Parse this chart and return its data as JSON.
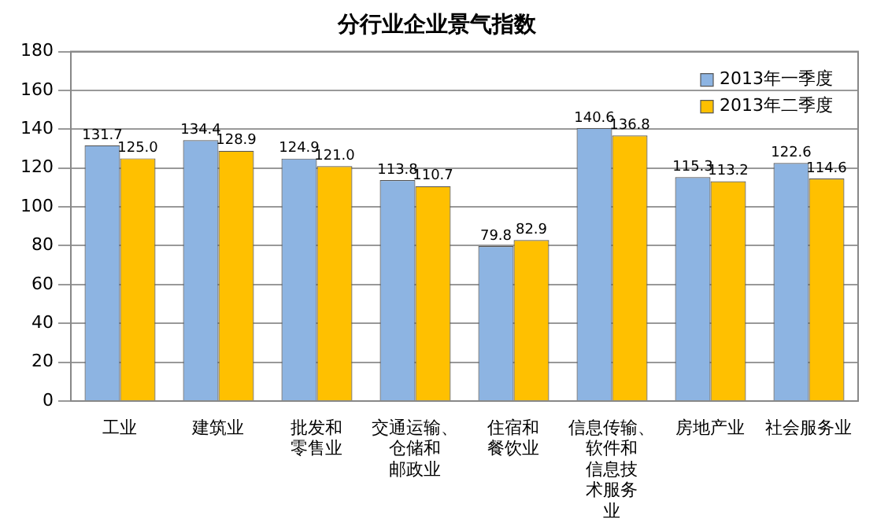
{
  "chart_data": {
    "type": "bar",
    "title": "分行业企业景气指数",
    "categories": [
      "工业",
      "建筑业",
      "批发和零售业",
      "交通运输、仓储和邮政业",
      "住宿和餐饮业",
      "信息传输、软件和信息技术服务业",
      "房地产业",
      "社会服务业"
    ],
    "series": [
      {
        "name": "2013年一季度",
        "color": "#8db4e2",
        "values": [
          131.7,
          134.4,
          124.9,
          113.8,
          79.8,
          140.6,
          115.3,
          122.6
        ],
        "value_labels": [
          "131.7",
          "134.4",
          "124.9",
          "113.8",
          "79.8",
          "140.6",
          "115.3",
          "122.6"
        ]
      },
      {
        "name": "2013年二季度",
        "color": "#ffc000",
        "values": [
          125.0,
          128.9,
          121.0,
          110.7,
          82.9,
          136.8,
          113.2,
          114.6
        ],
        "value_labels": [
          "125.0",
          "128.9",
          "121.0",
          "110.7",
          "82.9",
          "136.8",
          "113.2",
          "114.6"
        ]
      }
    ],
    "ylim": [
      0,
      180
    ],
    "yticks": [
      0,
      20,
      40,
      60,
      80,
      100,
      120,
      140,
      160,
      180
    ],
    "grid": "y",
    "legend": "top right"
  }
}
